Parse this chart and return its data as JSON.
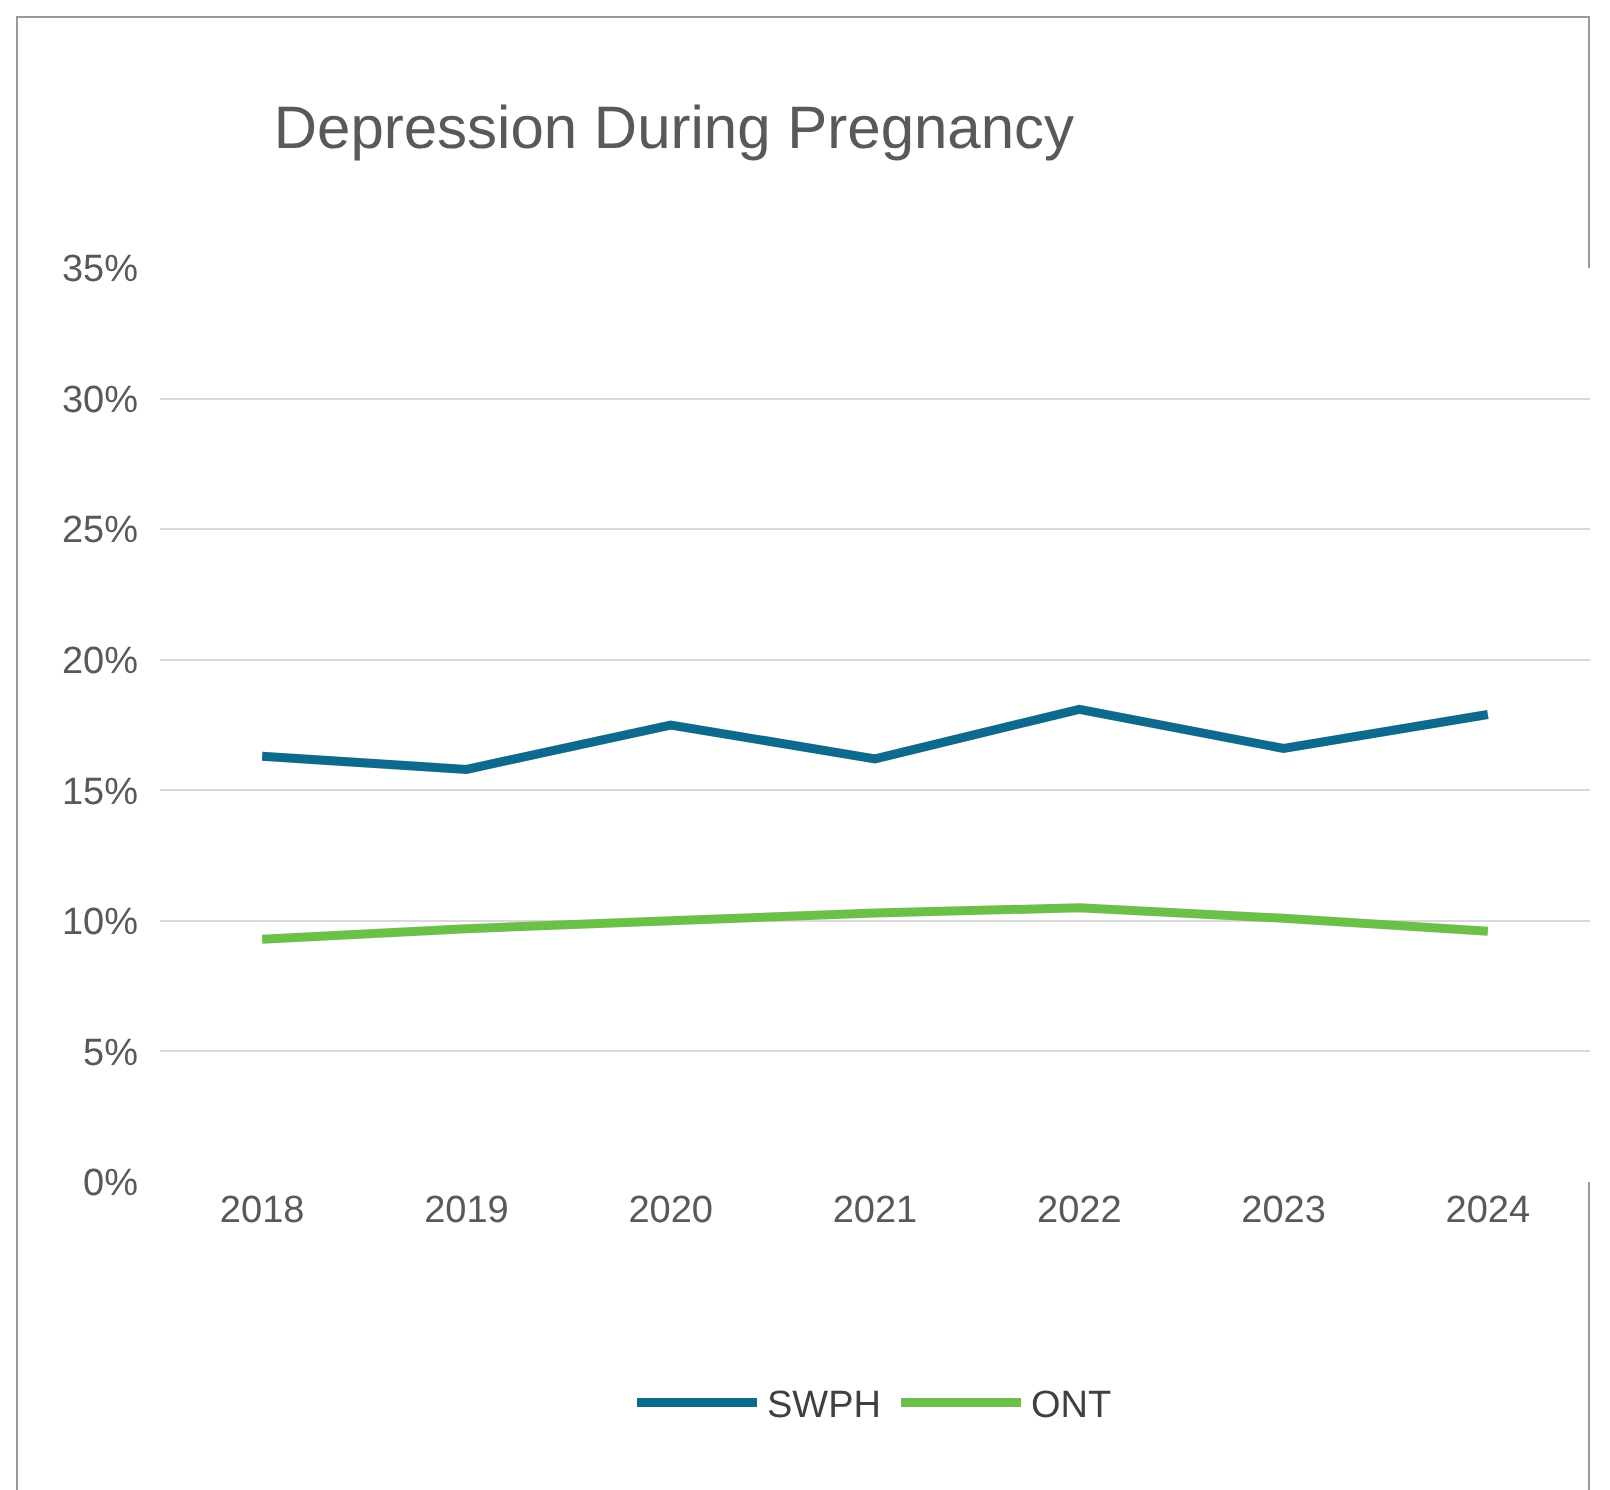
{
  "chart_data": {
    "type": "line",
    "title": "Depression During Pregnancy",
    "categories": [
      "2018",
      "2019",
      "2020",
      "2021",
      "2022",
      "2023",
      "2024"
    ],
    "series": [
      {
        "name": "SWPH",
        "color": "#0e6a8c",
        "values": [
          16.3,
          15.8,
          17.5,
          16.2,
          18.1,
          16.6,
          17.9
        ]
      },
      {
        "name": "ONT",
        "color": "#6cc04a",
        "values": [
          9.3,
          9.7,
          10.0,
          10.3,
          10.5,
          10.1,
          9.6
        ]
      }
    ],
    "ylim": [
      0,
      35
    ],
    "yticks": [
      {
        "value": 0,
        "label": "0%"
      },
      {
        "value": 5,
        "label": "5%"
      },
      {
        "value": 10,
        "label": "10%"
      },
      {
        "value": 15,
        "label": "15%"
      },
      {
        "value": 20,
        "label": "20%"
      },
      {
        "value": 25,
        "label": "25%"
      },
      {
        "value": 30,
        "label": "30%"
      },
      {
        "value": 35,
        "label": "35%"
      }
    ],
    "grid": "y",
    "legend": "bottom",
    "marker": "none",
    "line_style": "solid"
  }
}
